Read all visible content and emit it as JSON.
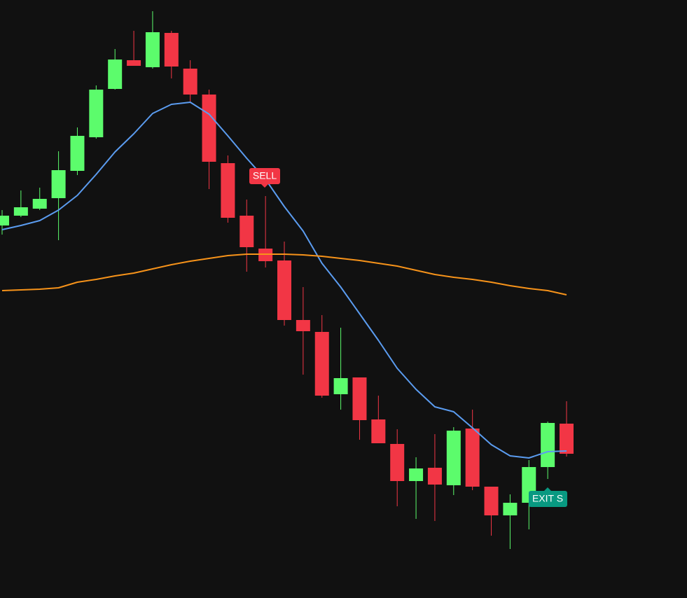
{
  "chart_data": {
    "type": "candlestick",
    "ylim": [
      0,
      854
    ],
    "up_color": "#5cfc6c",
    "down_color": "#f23645",
    "open": [
      532,
      546,
      556,
      571,
      610,
      658,
      727,
      768,
      758,
      807,
      756,
      719,
      621,
      546,
      499,
      482,
      397,
      380,
      291,
      315,
      255,
      220,
      167,
      186,
      161,
      242,
      159,
      118,
      136,
      187,
      249
    ],
    "high": [
      554,
      582,
      586,
      638,
      672,
      732,
      784,
      810,
      838,
      810,
      768,
      726,
      632,
      569,
      574,
      509,
      444,
      404,
      386,
      315,
      289,
      241,
      201,
      234,
      244,
      269,
      159,
      148,
      197,
      252,
      281
    ],
    "low": [
      519,
      544,
      554,
      511,
      604,
      656,
      726,
      760,
      756,
      742,
      709,
      584,
      536,
      466,
      472,
      389,
      319,
      286,
      269,
      226,
      221,
      131,
      113,
      110,
      147,
      154,
      89,
      70,
      98,
      170,
      202
    ],
    "close": [
      546,
      558,
      570,
      611,
      660,
      726,
      769,
      760,
      808,
      759,
      719,
      623,
      543,
      501,
      481,
      397,
      381,
      289,
      314,
      254,
      221,
      167,
      185,
      162,
      239,
      159,
      118,
      136,
      187,
      250,
      206
    ],
    "lines": [
      {
        "color": "#5b9cf0",
        "values": [
          526,
          532,
          539,
          554,
          575,
          605,
          637,
          663,
          692,
          705,
          708,
          691,
          660,
          628,
          598,
          559,
          524,
          478,
          444,
          406,
          368,
          328,
          298,
          273,
          266,
          243,
          219,
          203,
          200,
          209,
          210
        ]
      },
      {
        "color": "#f7931a",
        "values": [
          439,
          440,
          441,
          443,
          451,
          455,
          460,
          464,
          470,
          476,
          481,
          485,
          489,
          491,
          491,
          491,
          490,
          488,
          485,
          482,
          478,
          474,
          468,
          462,
          458,
          455,
          451,
          446,
          442,
          439,
          433
        ]
      }
    ],
    "annotations": [
      "SELL",
      "EXIT S"
    ]
  }
}
